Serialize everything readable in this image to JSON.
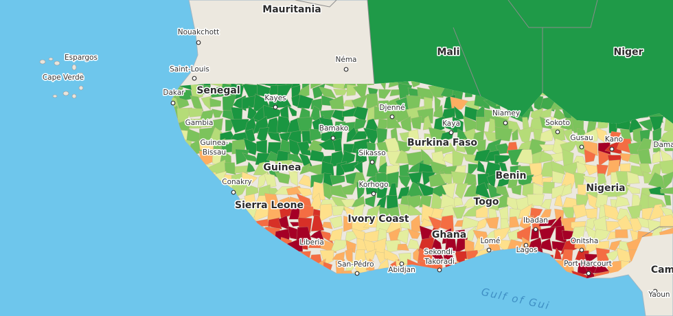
{
  "places": [
    "Mauritania",
    "Nouakchott",
    "Espargos",
    "Cape Verde",
    "Saint-Louis",
    "Dakar",
    "Senegal",
    "Kayes",
    "Mali",
    "Niger",
    "Néma",
    "Djenné",
    "Niamey",
    "Kaya",
    "Sokoto",
    "Gusau",
    "Kano",
    "Dama",
    "Gambia",
    "Bamako",
    "Guinea-",
    "Bissau",
    "Sikasso",
    "Burkina Faso",
    "Guinea",
    "Conakry",
    "Korhogo",
    "Benin",
    "Nigeria",
    "Togo",
    "Sierra Leone",
    "Ivory Coast",
    "Ghana",
    "Liberia",
    "Ibadan",
    "Onitsha",
    "Lomé",
    "Lagos",
    "Sekondi-",
    "Takoradi",
    "San-Pédro",
    "Abidjan",
    "Port Harcourt",
    "Gulf of Gui",
    "Cam",
    "Yaoun"
  ]
}
